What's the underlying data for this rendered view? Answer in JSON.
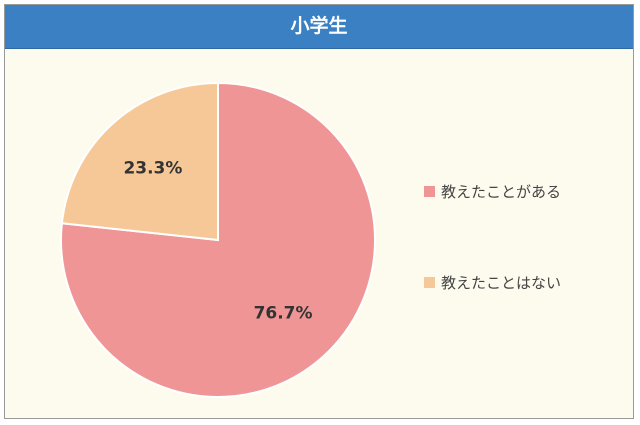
{
  "chart_data": {
    "type": "pie",
    "title": "小学生",
    "slices": [
      {
        "label": "教えたことがある",
        "value": 76.7,
        "display": "76.7%",
        "color": "#ef9595"
      },
      {
        "label": "教えたことはない",
        "value": 23.3,
        "display": "23.3%",
        "color": "#f7c897"
      }
    ],
    "legend_position": "right"
  },
  "colors": {
    "header": "#3a80c3",
    "background": "#fdfbee"
  }
}
